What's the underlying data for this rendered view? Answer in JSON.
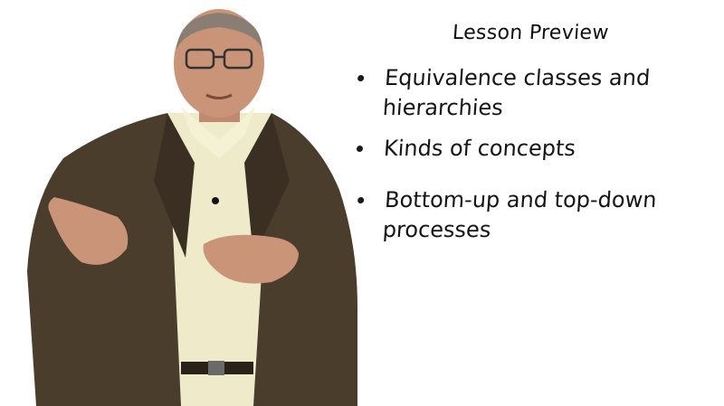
{
  "slide": {
    "title": "Lesson Preview",
    "bullets": [
      "Equivalence classes and hierarchies",
      "Kinds of concepts",
      "Bottom-up and top-down processes"
    ]
  },
  "colors": {
    "background": "#ffffff",
    "text": "#151515",
    "jacket": "#4a3d2c",
    "shirt": "#efeac9",
    "skin": "#c99478"
  }
}
